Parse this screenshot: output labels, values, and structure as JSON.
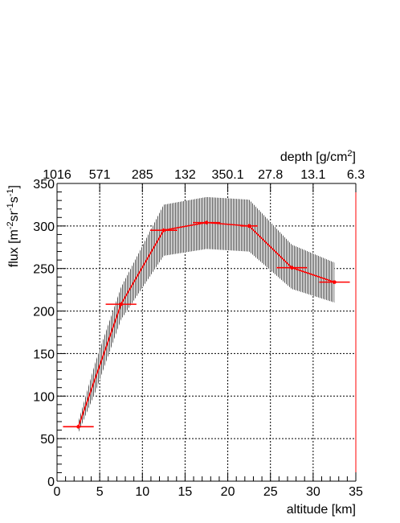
{
  "chart_data": {
    "type": "line",
    "xlabel": "altitude [km]",
    "ylabel_base": "flux [m",
    "ylabel_sup1": "-2",
    "ylabel_mid1": "sr",
    "ylabel_sup2": "-1",
    "ylabel_mid2": "s",
    "ylabel_sup3": "-1",
    "ylabel_end": "]",
    "top_axis_label_base": "depth [g/cm",
    "top_axis_label_sup": "2",
    "top_axis_label_end": "]",
    "top_axis_ticks": [
      {
        "label": "1016",
        "x": 0
      },
      {
        "label": "571",
        "x": 5
      },
      {
        "label": "285",
        "x": 10
      },
      {
        "label": "132",
        "x": 15
      },
      {
        "label": "350.1",
        "x": 20
      },
      {
        "label": "27.8",
        "x": 25
      },
      {
        "label": "13.1",
        "x": 30
      },
      {
        "label": "6.3",
        "x": 35
      }
    ],
    "xlim": [
      0,
      35
    ],
    "ylim": [
      0,
      350
    ],
    "x_ticks": [
      0,
      5,
      10,
      15,
      20,
      25,
      30,
      35
    ],
    "y_ticks": [
      0,
      50,
      100,
      150,
      200,
      250,
      300,
      350
    ],
    "grid": true,
    "series": [
      {
        "x": [
          2.5,
          7.5,
          12.5,
          17.5,
          22.5,
          27.5,
          32.5
        ],
        "y": [
          64,
          208,
          295,
          304,
          300,
          251,
          234
        ],
        "x_err": [
          1.8,
          1.8,
          1.6,
          1.6,
          1.0,
          1.8,
          1.8
        ]
      }
    ],
    "band": {
      "x": [
        2.5,
        4.5,
        7.5,
        12.5,
        17.5,
        22.5,
        27.5,
        32.5
      ],
      "lower": [
        57,
        105,
        190,
        265,
        273,
        270,
        226,
        210
      ],
      "upper": [
        70,
        140,
        228,
        325,
        334,
        331,
        278,
        257
      ]
    },
    "colors": {
      "series": "#ff0000",
      "band": "#8c8c8c",
      "frame": "#000000",
      "grid": "#000000"
    }
  }
}
